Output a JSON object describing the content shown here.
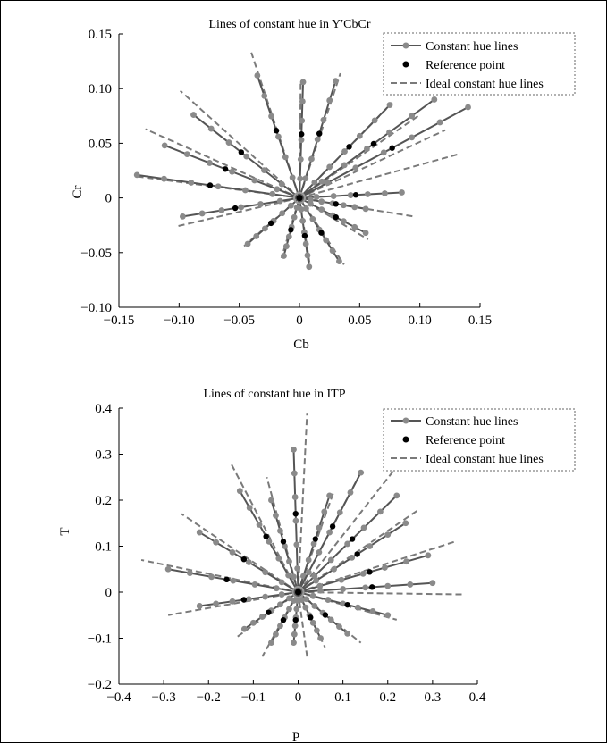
{
  "chart_data": [
    {
      "type": "line",
      "title": "Lines of constant hue in Y′CbCr",
      "xlabel": "Cb",
      "ylabel": "Cr",
      "xlim": [
        -0.15,
        0.15
      ],
      "ylim": [
        -0.1,
        0.15
      ],
      "x_ticks": [
        "−0.15",
        "−0.10",
        "−0.05",
        "0",
        "0.05",
        "0.10",
        "0.15"
      ],
      "x_tick_values": [
        -0.15,
        -0.1,
        -0.05,
        0,
        0.05,
        0.1,
        0.15
      ],
      "y_ticks": [
        "−0.10",
        "−0.05",
        "0",
        "0.05",
        "0.10",
        "0.15"
      ],
      "y_tick_values": [
        -0.1,
        -0.05,
        0,
        0.05,
        0.1,
        0.15
      ],
      "grid": false,
      "legend_position": "top-right",
      "legend": [
        "Constant hue lines",
        "Reference point",
        "Ideal constant hue lines"
      ],
      "colors": {
        "constant": "#555555",
        "marker": "#8a8a8a",
        "reference": "#000000",
        "ideal": "#7a7a7a"
      },
      "lines": [
        {
          "end": [
            -0.035,
            0.112
          ],
          "ideal_end": [
            -0.04,
            0.133
          ]
        },
        {
          "end": [
            0.003,
            0.106
          ],
          "ideal_end": [
            0.001,
            0.105
          ]
        },
        {
          "end": [
            0.03,
            0.107
          ],
          "ideal_end": [
            0.034,
            0.114
          ]
        },
        {
          "end": [
            0.075,
            0.085
          ],
          "ideal_end": [
            0.077,
            0.087
          ]
        },
        {
          "end": [
            0.112,
            0.09
          ],
          "ideal_end": [
            0.1,
            0.076
          ]
        },
        {
          "end": [
            0.14,
            0.083
          ],
          "ideal_end": [
            0.121,
            0.062
          ]
        },
        {
          "end": [
            0.085,
            0.005
          ],
          "ideal_end": [
            0.132,
            0.04
          ]
        },
        {
          "end": [
            0.055,
            -0.01
          ],
          "ideal_end": [
            0.095,
            -0.017
          ]
        },
        {
          "end": [
            0.055,
            -0.032
          ],
          "ideal_end": [
            0.057,
            -0.038
          ]
        },
        {
          "end": [
            0.033,
            -0.058
          ],
          "ideal_end": [
            0.037,
            -0.061
          ]
        },
        {
          "end": [
            0.008,
            -0.063
          ],
          "ideal_end": [
            0.009,
            -0.064
          ]
        },
        {
          "end": [
            -0.013,
            -0.053
          ],
          "ideal_end": [
            -0.015,
            -0.055
          ]
        },
        {
          "end": [
            -0.043,
            -0.042
          ],
          "ideal_end": [
            -0.046,
            -0.044
          ]
        },
        {
          "end": [
            -0.097,
            -0.017
          ],
          "ideal_end": [
            -0.102,
            -0.026
          ]
        },
        {
          "end": [
            -0.135,
            0.021
          ],
          "ideal_end": [
            -0.137,
            0.02
          ]
        },
        {
          "end": [
            -0.112,
            0.048
          ],
          "ideal_end": [
            -0.128,
            0.063
          ]
        },
        {
          "end": [
            -0.088,
            0.076
          ],
          "ideal_end": [
            -0.099,
            0.098
          ]
        }
      ]
    },
    {
      "type": "line",
      "title": "Lines of constant hue in ITP",
      "xlabel": "P",
      "ylabel": "T",
      "xlim": [
        -0.4,
        0.4
      ],
      "ylim": [
        -0.2,
        0.4
      ],
      "x_ticks": [
        "−0.4",
        "−0.3",
        "−0.2",
        "−0.1",
        "0",
        "0.1",
        "0.2",
        "0.3",
        "0.4"
      ],
      "x_tick_values": [
        -0.4,
        -0.3,
        -0.2,
        -0.1,
        0,
        0.1,
        0.2,
        0.3,
        0.4
      ],
      "y_ticks": [
        "−0.2",
        "−0.1",
        "0",
        "0.1",
        "0.2",
        "0.3",
        "0.4"
      ],
      "y_tick_values": [
        -0.2,
        -0.1,
        0,
        0.1,
        0.2,
        0.3,
        0.4
      ],
      "grid": false,
      "legend_position": "top-right",
      "legend": [
        "Constant hue lines",
        "Reference point",
        "Ideal constant hue lines"
      ],
      "colors": {
        "constant": "#555555",
        "marker": "#8a8a8a",
        "reference": "#000000",
        "ideal": "#7a7a7a"
      },
      "lines": [
        {
          "end": [
            -0.01,
            0.31
          ],
          "ideal_end": [
            0.02,
            0.39
          ]
        },
        {
          "end": [
            0.07,
            0.21
          ],
          "ideal_end": [
            0.08,
            0.22
          ]
        },
        {
          "end": [
            0.14,
            0.26
          ],
          "ideal_end": [
            0.14,
            0.26
          ]
        },
        {
          "end": [
            0.22,
            0.21
          ],
          "ideal_end": [
            0.25,
            0.31
          ]
        },
        {
          "end": [
            0.24,
            0.15
          ],
          "ideal_end": [
            0.27,
            0.18
          ]
        },
        {
          "end": [
            0.29,
            0.08
          ],
          "ideal_end": [
            0.35,
            0.11
          ]
        },
        {
          "end": [
            0.3,
            0.02
          ],
          "ideal_end": [
            0.37,
            -0.005
          ]
        },
        {
          "end": [
            0.2,
            -0.05
          ],
          "ideal_end": [
            0.22,
            -0.06
          ]
        },
        {
          "end": [
            0.11,
            -0.09
          ],
          "ideal_end": [
            0.14,
            -0.11
          ]
        },
        {
          "end": [
            0.05,
            -0.1
          ],
          "ideal_end": [
            0.06,
            -0.12
          ]
        },
        {
          "end": [
            -0.01,
            -0.11
          ],
          "ideal_end": [
            0.02,
            -0.14
          ]
        },
        {
          "end": [
            -0.06,
            -0.11
          ],
          "ideal_end": [
            -0.08,
            -0.14
          ]
        },
        {
          "end": [
            -0.12,
            -0.08
          ],
          "ideal_end": [
            -0.14,
            -0.1
          ]
        },
        {
          "end": [
            -0.22,
            -0.03
          ],
          "ideal_end": [
            -0.29,
            -0.05
          ]
        },
        {
          "end": [
            -0.29,
            0.05
          ],
          "ideal_end": [
            -0.35,
            0.07
          ]
        },
        {
          "end": [
            -0.22,
            0.13
          ],
          "ideal_end": [
            -0.26,
            0.17
          ]
        },
        {
          "end": [
            -0.13,
            0.22
          ],
          "ideal_end": [
            -0.15,
            0.28
          ]
        },
        {
          "end": [
            -0.06,
            0.2
          ],
          "ideal_end": [
            -0.07,
            0.25
          ]
        }
      ]
    }
  ]
}
